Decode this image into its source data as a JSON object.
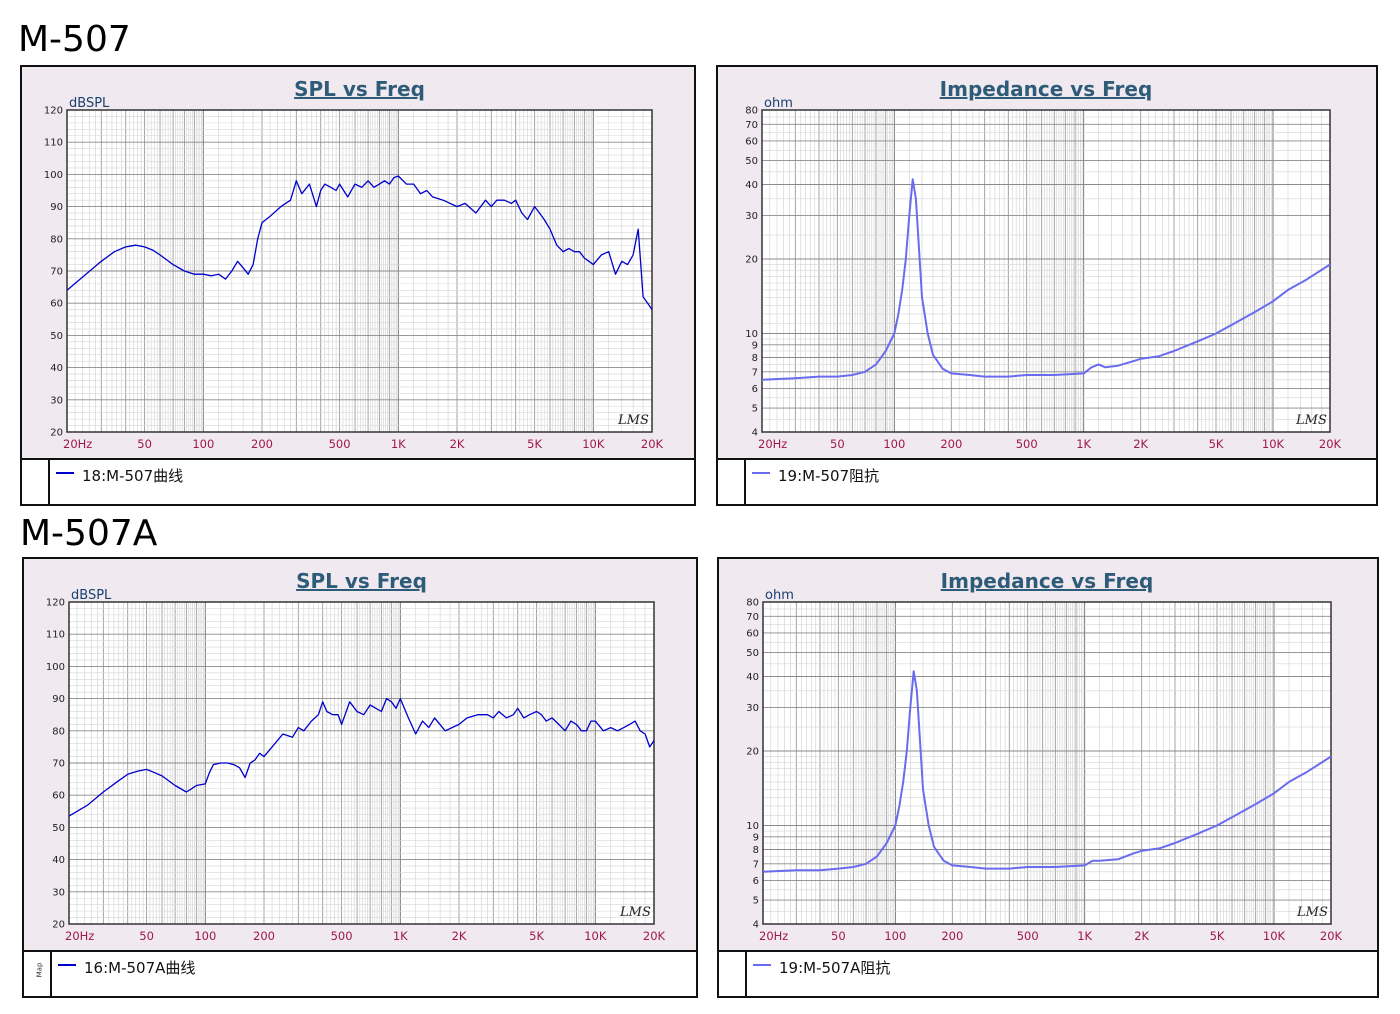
{
  "sections": [
    {
      "title": "M-507"
    },
    {
      "title": "M-507A"
    }
  ],
  "colors": {
    "spl_line": "#0000cc",
    "imp_line": "#6b6bf0",
    "panel_bg": "#f0eaf0",
    "grid": "#9a9a9a",
    "title": "#2e5c78",
    "tick_x": "#a01848"
  },
  "watermark": "LMS",
  "panels": [
    {
      "id": "spl1",
      "legend": "18:M-507曲线",
      "gutter": ""
    },
    {
      "id": "imp1",
      "legend": "19:M-507阻抗",
      "gutter": ""
    },
    {
      "id": "spl2",
      "legend": "16:M-507A曲线",
      "gutter": "Map"
    },
    {
      "id": "imp2",
      "legend": "19:M-507A阻抗",
      "gutter": ""
    }
  ],
  "chart_data": [
    {
      "id": "spl1",
      "type": "line",
      "title": "SPL vs Freq",
      "ylabel": "dBSPL",
      "xlabel": "",
      "x_scale": "log",
      "xlim": [
        20,
        20000
      ],
      "ylim": [
        20,
        120
      ],
      "xticks": [
        [
          20,
          "20Hz"
        ],
        [
          50,
          "50"
        ],
        [
          100,
          "100"
        ],
        [
          200,
          "200"
        ],
        [
          500,
          "500"
        ],
        [
          1000,
          "1K"
        ],
        [
          2000,
          "2K"
        ],
        [
          5000,
          "5K"
        ],
        [
          10000,
          "10K"
        ],
        [
          20000,
          "20K"
        ]
      ],
      "yticks": [
        20,
        30,
        40,
        50,
        60,
        70,
        80,
        90,
        100,
        110,
        120
      ],
      "grid": true,
      "series": [
        {
          "name": "18:M-507曲线",
          "x": [
            20,
            25,
            30,
            35,
            40,
            45,
            50,
            55,
            60,
            70,
            80,
            90,
            100,
            110,
            120,
            130,
            140,
            150,
            160,
            170,
            180,
            190,
            200,
            220,
            250,
            280,
            300,
            320,
            350,
            380,
            400,
            420,
            450,
            480,
            500,
            550,
            600,
            650,
            700,
            750,
            800,
            850,
            900,
            950,
            1000,
            1100,
            1200,
            1300,
            1400,
            1500,
            1700,
            2000,
            2200,
            2500,
            2800,
            3000,
            3200,
            3500,
            3800,
            4000,
            4300,
            4600,
            5000,
            5300,
            5600,
            6000,
            6500,
            7000,
            7500,
            8000,
            8500,
            9000,
            9500,
            10000,
            11000,
            12000,
            13000,
            14000,
            15000,
            16000,
            17000,
            18000,
            19000,
            20000
          ],
          "y": [
            64,
            69,
            73,
            76,
            77.5,
            78,
            77.5,
            76.5,
            75,
            72,
            70,
            69,
            69,
            68.5,
            69,
            67.5,
            70,
            73,
            71,
            69,
            72,
            80,
            85,
            87,
            90,
            92,
            98,
            94,
            97,
            90,
            95,
            97,
            96,
            95,
            97,
            93,
            97,
            96,
            98,
            96,
            97,
            98,
            97,
            99,
            99.5,
            97,
            97,
            94,
            95,
            93,
            92,
            90,
            91,
            88,
            92,
            90,
            92,
            92,
            91,
            92,
            88,
            86,
            90,
            88,
            86,
            83,
            78,
            76,
            77,
            76,
            76,
            74,
            73,
            72,
            75,
            76,
            69,
            73,
            72,
            75,
            83,
            62,
            60,
            58
          ]
        }
      ]
    },
    {
      "id": "imp1",
      "type": "line",
      "title": "Impedance vs Freq",
      "ylabel": "ohm",
      "xlabel": "",
      "x_scale": "log",
      "y_scale": "log",
      "xlim": [
        20,
        20000
      ],
      "ylim": [
        4,
        80
      ],
      "xticks": [
        [
          20,
          "20Hz"
        ],
        [
          50,
          "50"
        ],
        [
          100,
          "100"
        ],
        [
          200,
          "200"
        ],
        [
          500,
          "500"
        ],
        [
          1000,
          "1K"
        ],
        [
          2000,
          "2K"
        ],
        [
          5000,
          "5K"
        ],
        [
          10000,
          "10K"
        ],
        [
          20000,
          "20K"
        ]
      ],
      "yticks": [
        4,
        5,
        6,
        7,
        8,
        9,
        10,
        20,
        30,
        40,
        50,
        60,
        70,
        80
      ],
      "grid": true,
      "series": [
        {
          "name": "19:M-507阻抗",
          "x": [
            20,
            30,
            40,
            50,
            60,
            70,
            80,
            90,
            100,
            105,
            110,
            115,
            120,
            125,
            130,
            135,
            140,
            150,
            160,
            180,
            200,
            250,
            300,
            400,
            500,
            700,
            1000,
            1100,
            1200,
            1300,
            1500,
            1800,
            2000,
            2500,
            3000,
            4000,
            5000,
            6000,
            8000,
            10000,
            12000,
            15000,
            20000
          ],
          "y": [
            6.5,
            6.6,
            6.7,
            6.7,
            6.8,
            7.0,
            7.5,
            8.5,
            10,
            12,
            15,
            20,
            30,
            42,
            35,
            22,
            14,
            10,
            8.2,
            7.2,
            6.9,
            6.8,
            6.7,
            6.7,
            6.8,
            6.8,
            6.9,
            7.3,
            7.5,
            7.3,
            7.4,
            7.7,
            7.9,
            8.1,
            8.5,
            9.3,
            10,
            10.8,
            12.2,
            13.5,
            15,
            16.5,
            19
          ]
        }
      ]
    },
    {
      "id": "spl2",
      "type": "line",
      "title": "SPL vs Freq",
      "ylabel": "dBSPL",
      "xlabel": "",
      "x_scale": "log",
      "xlim": [
        20,
        20000
      ],
      "ylim": [
        20,
        120
      ],
      "xticks": [
        [
          20,
          "20Hz"
        ],
        [
          50,
          "50"
        ],
        [
          100,
          "100"
        ],
        [
          200,
          "200"
        ],
        [
          500,
          "500"
        ],
        [
          1000,
          "1K"
        ],
        [
          2000,
          "2K"
        ],
        [
          5000,
          "5K"
        ],
        [
          10000,
          "10K"
        ],
        [
          20000,
          "20K"
        ]
      ],
      "yticks": [
        20,
        30,
        40,
        50,
        60,
        70,
        80,
        90,
        100,
        110,
        120
      ],
      "grid": true,
      "series": [
        {
          "name": "16:M-507A曲线",
          "x": [
            20,
            25,
            30,
            35,
            40,
            45,
            50,
            55,
            60,
            70,
            80,
            85,
            90,
            100,
            105,
            110,
            120,
            130,
            140,
            150,
            160,
            170,
            180,
            190,
            200,
            220,
            250,
            280,
            300,
            320,
            350,
            380,
            400,
            420,
            450,
            480,
            500,
            550,
            600,
            650,
            700,
            750,
            800,
            850,
            900,
            950,
            1000,
            1100,
            1200,
            1300,
            1400,
            1500,
            1700,
            2000,
            2200,
            2500,
            2800,
            3000,
            3200,
            3500,
            3800,
            4000,
            4300,
            4600,
            5000,
            5300,
            5600,
            6000,
            6500,
            7000,
            7500,
            8000,
            8500,
            9000,
            9500,
            10000,
            11000,
            12000,
            13000,
            14000,
            15000,
            16000,
            17000,
            18000,
            19000,
            20000
          ],
          "y": [
            53.5,
            57,
            61,
            64,
            66.5,
            67.5,
            68,
            67,
            66,
            63,
            61,
            62,
            63,
            63.5,
            67,
            69.5,
            70,
            70,
            69.5,
            68.5,
            65.5,
            70,
            71,
            73,
            72,
            75,
            79,
            78,
            81,
            80,
            83,
            85,
            89,
            86,
            85,
            85,
            82,
            89,
            86,
            85,
            88,
            87,
            86,
            90,
            89,
            87,
            90,
            84,
            79,
            83,
            81,
            84,
            80,
            82,
            84,
            85,
            85,
            84,
            86,
            84,
            85,
            87,
            84,
            85,
            86,
            85,
            83,
            84,
            82,
            80,
            83,
            82,
            80,
            80,
            83,
            83,
            80,
            81,
            80,
            81,
            82,
            83,
            80,
            79,
            75,
            77
          ]
        }
      ]
    },
    {
      "id": "imp2",
      "type": "line",
      "title": "Impedance vs Freq",
      "ylabel": "ohm",
      "xlabel": "",
      "x_scale": "log",
      "y_scale": "log",
      "xlim": [
        20,
        20000
      ],
      "ylim": [
        4,
        80
      ],
      "xticks": [
        [
          20,
          "20Hz"
        ],
        [
          50,
          "50"
        ],
        [
          100,
          "100"
        ],
        [
          200,
          "200"
        ],
        [
          500,
          "500"
        ],
        [
          1000,
          "1K"
        ],
        [
          2000,
          "2K"
        ],
        [
          5000,
          "5K"
        ],
        [
          10000,
          "10K"
        ],
        [
          20000,
          "20K"
        ]
      ],
      "yticks": [
        4,
        5,
        6,
        7,
        8,
        9,
        10,
        20,
        30,
        40,
        50,
        60,
        70,
        80
      ],
      "grid": true,
      "series": [
        {
          "name": "19:M-507A阻抗",
          "x": [
            20,
            30,
            40,
            50,
            60,
            70,
            80,
            90,
            100,
            105,
            110,
            115,
            120,
            125,
            130,
            135,
            140,
            150,
            160,
            180,
            200,
            250,
            300,
            400,
            500,
            700,
            1000,
            1100,
            1200,
            1500,
            1800,
            2000,
            2500,
            3000,
            4000,
            5000,
            6000,
            8000,
            10000,
            12000,
            15000,
            20000
          ],
          "y": [
            6.5,
            6.6,
            6.6,
            6.7,
            6.8,
            7.0,
            7.5,
            8.5,
            10,
            12,
            15,
            20,
            30,
            42,
            35,
            22,
            14,
            10,
            8.2,
            7.2,
            6.9,
            6.8,
            6.7,
            6.7,
            6.8,
            6.8,
            6.9,
            7.2,
            7.2,
            7.3,
            7.7,
            7.9,
            8.1,
            8.5,
            9.3,
            10,
            10.8,
            12.2,
            13.5,
            15,
            16.5,
            19
          ]
        }
      ]
    }
  ]
}
